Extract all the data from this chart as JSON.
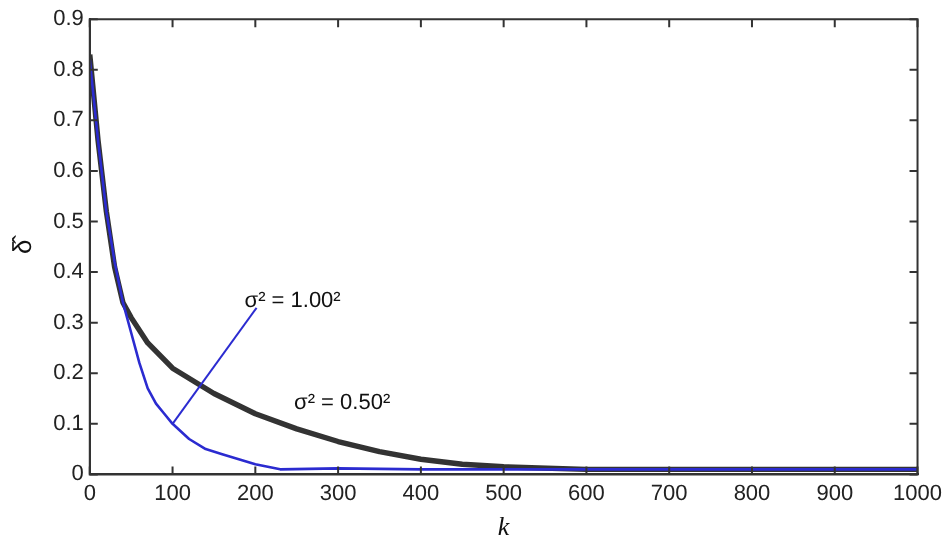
{
  "chart_data": {
    "type": "line",
    "xlabel": "k",
    "ylabel": "δ̂",
    "xlim": [
      0,
      1000
    ],
    "ylim": [
      0,
      0.9
    ],
    "xticks": [
      0,
      100,
      200,
      300,
      400,
      500,
      600,
      700,
      800,
      900,
      1000
    ],
    "yticks": [
      0,
      0.1,
      0.2,
      0.3,
      0.4,
      0.5,
      0.6,
      0.7,
      0.8,
      0.9
    ],
    "grid": false,
    "legend": false,
    "marker": "none",
    "line_style": "solid",
    "series": [
      {
        "color": "#2b2bd0",
        "x": [
          0,
          10,
          20,
          30,
          40,
          50,
          60,
          70,
          80,
          90,
          100,
          120,
          140,
          160,
          180,
          200,
          230,
          300,
          400,
          1000
        ],
        "values": [
          0.82,
          0.66,
          0.52,
          0.42,
          0.34,
          0.28,
          0.22,
          0.17,
          0.14,
          0.12,
          0.1,
          0.07,
          0.05,
          0.04,
          0.03,
          0.02,
          0.01,
          0.012,
          0.01,
          0.01
        ]
      },
      {
        "color": "#333333",
        "x": [
          0,
          10,
          20,
          30,
          40,
          50,
          70,
          100,
          150,
          200,
          250,
          300,
          350,
          400,
          450,
          500,
          600,
          1000
        ],
        "values": [
          0.83,
          0.66,
          0.52,
          0.41,
          0.34,
          0.31,
          0.26,
          0.21,
          0.16,
          0.12,
          0.09,
          0.065,
          0.045,
          0.03,
          0.02,
          0.015,
          0.01,
          0.01
        ]
      }
    ],
    "annotations": [
      {
        "text": "σ² = 1.00²",
        "x": 100,
        "y": 0.1
      },
      {
        "text": "σ² = 0.50²",
        "x": 300,
        "y": 0.065
      }
    ]
  }
}
